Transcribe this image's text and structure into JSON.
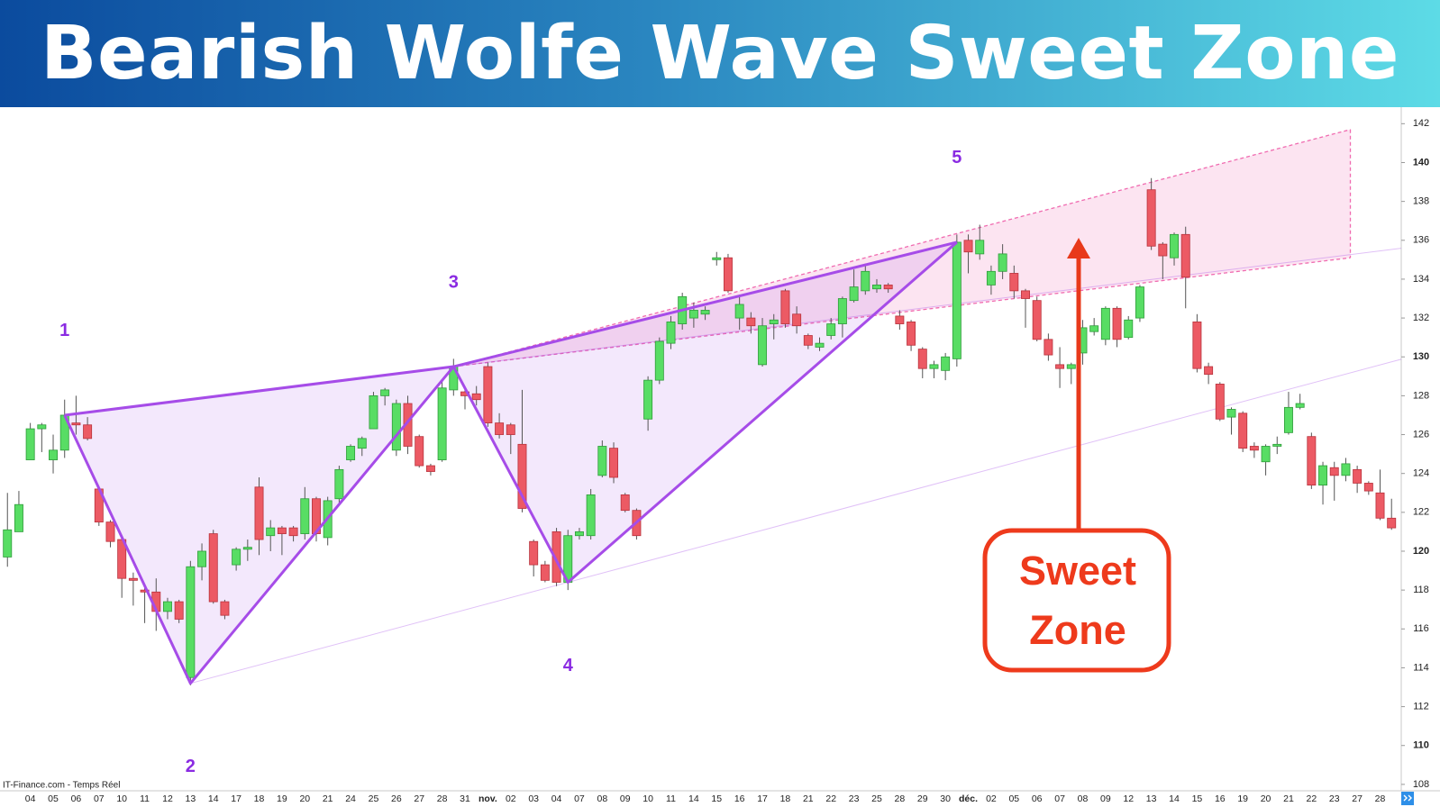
{
  "chart_data": {
    "type": "candlestick",
    "title": "Bearish Wolfe Wave Sweet Zone",
    "source": "IT-Finance.com - Temps Réel",
    "categories": [
      null,
      null,
      "04",
      null,
      "05",
      null,
      "06",
      null,
      "07",
      null,
      "10",
      null,
      "11",
      null,
      "12",
      null,
      "13",
      null,
      "14",
      null,
      "17",
      null,
      "18",
      null,
      "19",
      null,
      "20",
      null,
      "21",
      null,
      "24",
      null,
      "25",
      null,
      "26",
      null,
      "27",
      null,
      "28",
      null,
      "31",
      null,
      "nov.",
      null,
      "02",
      null,
      "03",
      null,
      "04",
      null,
      "07",
      null,
      "08",
      null,
      "09",
      null,
      "10",
      null,
      "11",
      null,
      "14",
      null,
      "15",
      null,
      "16",
      null,
      "17",
      null,
      "18",
      null,
      "21",
      null,
      "22",
      null,
      "23",
      null,
      "25",
      null,
      "28",
      null,
      "29",
      null,
      "30",
      null,
      "déc.",
      null,
      "02",
      null,
      "05",
      null,
      "06",
      null,
      "07",
      null,
      "08",
      null,
      "09",
      null,
      "12",
      null,
      "13",
      null,
      "14",
      null,
      "15",
      null,
      "16",
      null,
      "19",
      null,
      "20",
      null,
      "21",
      null,
      "22",
      null,
      "23",
      null,
      "27",
      null,
      "28",
      null
    ],
    "open": [
      119.7,
      121.0,
      124.7,
      126.3,
      124.7,
      125.2,
      126.6,
      126.5,
      123.2,
      121.5,
      120.6,
      118.6,
      118.0,
      117.9,
      116.9,
      117.4,
      113.5,
      119.2,
      120.9,
      117.4,
      119.3,
      120.1,
      123.3,
      120.8,
      121.2,
      121.2,
      120.9,
      122.7,
      120.7,
      122.7,
      124.7,
      125.3,
      126.3,
      128.0,
      125.2,
      127.6,
      125.9,
      124.4,
      124.7,
      128.3,
      128.2,
      128.1,
      129.5,
      126.6,
      126.5,
      125.5,
      120.5,
      119.3,
      121.0,
      118.4,
      120.8,
      120.8,
      123.9,
      125.3,
      122.9,
      122.1,
      126.8,
      128.8,
      130.7,
      131.7,
      132.0,
      132.2,
      135.0,
      135.1,
      132.0,
      132.0,
      129.6,
      131.7,
      133.4,
      132.2,
      131.1,
      130.5,
      131.1,
      131.7,
      132.9,
      133.4,
      133.5,
      133.7,
      132.1,
      131.8,
      130.4,
      129.4,
      129.3,
      129.9,
      136.0,
      135.3,
      133.7,
      134.4,
      134.3,
      133.4,
      132.9,
      130.9,
      129.6,
      129.4,
      130.2,
      131.3,
      130.9,
      132.5,
      131.0,
      132.0,
      138.6,
      135.8,
      135.1,
      136.3,
      131.8,
      129.5,
      128.6,
      126.9,
      127.1,
      125.4,
      124.6,
      125.4,
      126.1,
      127.4,
      125.9,
      123.4,
      124.3,
      123.9,
      124.2,
      123.5,
      123.0,
      121.7
    ],
    "high": [
      123.0,
      123.1,
      126.6,
      126.6,
      126.0,
      127.8,
      128.0,
      126.9,
      123.3,
      121.6,
      120.7,
      118.9,
      118.2,
      118.6,
      117.6,
      117.5,
      119.5,
      120.4,
      121.1,
      117.5,
      120.2,
      120.6,
      123.8,
      121.6,
      121.3,
      121.3,
      123.3,
      122.8,
      122.8,
      124.4,
      125.5,
      125.9,
      128.2,
      128.4,
      127.8,
      128.0,
      126.0,
      124.5,
      128.8,
      129.9,
      128.3,
      128.5,
      129.7,
      127.1,
      126.6,
      128.3,
      120.6,
      119.5,
      121.2,
      121.1,
      121.2,
      123.2,
      125.7,
      125.6,
      123.0,
      122.2,
      129.0,
      131.0,
      132.1,
      133.3,
      132.8,
      132.6,
      135.4,
      135.3,
      133.2,
      132.3,
      132.0,
      132.2,
      133.5,
      132.6,
      131.2,
      131.0,
      132.0,
      133.1,
      134.5,
      134.8,
      134.0,
      133.8,
      132.4,
      131.9,
      130.5,
      129.8,
      130.2,
      136.3,
      136.3,
      136.8,
      134.7,
      135.8,
      134.7,
      133.5,
      133.1,
      131.2,
      130.5,
      129.7,
      131.9,
      132.0,
      132.6,
      132.6,
      132.1,
      133.7,
      139.2,
      135.9,
      136.4,
      136.7,
      132.2,
      129.7,
      128.7,
      127.4,
      127.2,
      125.6,
      125.5,
      125.9,
      128.2,
      128.1,
      126.1,
      124.6,
      124.6,
      124.8,
      124.4,
      123.6,
      124.2,
      122.7
    ],
    "low": [
      119.2,
      121.0,
      124.7,
      125.1,
      124.0,
      124.8,
      126.0,
      125.7,
      121.3,
      120.2,
      117.6,
      117.2,
      116.3,
      115.9,
      116.5,
      116.3,
      113.1,
      118.5,
      117.3,
      116.5,
      119.0,
      119.5,
      119.8,
      120.0,
      119.8,
      120.5,
      120.6,
      120.5,
      120.3,
      122.5,
      124.6,
      124.9,
      126.3,
      127.5,
      124.9,
      125.0,
      124.3,
      123.9,
      124.6,
      128.0,
      127.3,
      127.5,
      126.4,
      125.8,
      125.0,
      122.0,
      118.7,
      118.4,
      118.2,
      118.0,
      120.6,
      120.6,
      123.8,
      123.5,
      122.0,
      120.6,
      126.2,
      128.6,
      130.4,
      131.4,
      131.5,
      131.9,
      134.7,
      133.3,
      131.4,
      131.2,
      129.5,
      130.9,
      131.5,
      131.2,
      130.4,
      130.3,
      130.9,
      131.0,
      132.8,
      133.2,
      133.3,
      133.3,
      131.4,
      130.3,
      128.9,
      128.9,
      128.8,
      129.5,
      134.3,
      135.0,
      133.2,
      134.0,
      133.0,
      131.5,
      130.8,
      129.8,
      128.4,
      128.6,
      129.6,
      131.1,
      130.6,
      130.5,
      130.9,
      131.8,
      135.5,
      134.0,
      134.7,
      132.5,
      129.2,
      128.6,
      126.7,
      126.0,
      125.1,
      124.8,
      123.9,
      125.0,
      126.0,
      127.3,
      123.2,
      122.4,
      122.6,
      123.6,
      123.0,
      122.9,
      121.6,
      121.1
    ],
    "close": [
      121.1,
      122.4,
      126.3,
      126.5,
      125.2,
      127.0,
      126.5,
      125.8,
      121.5,
      120.5,
      118.6,
      118.5,
      117.9,
      116.9,
      117.4,
      116.5,
      119.2,
      120.0,
      117.4,
      116.7,
      120.1,
      120.2,
      120.6,
      121.2,
      120.9,
      120.8,
      122.7,
      120.9,
      122.6,
      124.2,
      125.4,
      125.8,
      128.0,
      128.3,
      127.6,
      125.4,
      124.4,
      124.1,
      128.4,
      129.5,
      128.0,
      127.8,
      126.6,
      126.0,
      126.0,
      122.2,
      119.3,
      118.5,
      118.4,
      120.8,
      121.0,
      122.9,
      125.4,
      123.8,
      122.1,
      120.8,
      128.8,
      130.8,
      131.8,
      133.1,
      132.4,
      132.4,
      135.1,
      133.4,
      132.7,
      131.6,
      131.6,
      131.9,
      131.7,
      131.6,
      130.6,
      130.7,
      131.7,
      133.0,
      133.6,
      134.4,
      133.7,
      133.5,
      131.7,
      130.6,
      129.4,
      129.6,
      130.0,
      135.9,
      135.4,
      136.0,
      134.4,
      135.3,
      133.4,
      133.0,
      130.9,
      130.1,
      129.4,
      129.6,
      131.5,
      131.6,
      132.5,
      130.9,
      131.9,
      133.6,
      135.7,
      135.2,
      136.3,
      134.1,
      129.4,
      129.1,
      126.8,
      127.3,
      125.3,
      125.2,
      125.4,
      125.5,
      127.4,
      127.6,
      123.4,
      124.4,
      123.9,
      124.5,
      123.5,
      123.1,
      121.7,
      121.2
    ],
    "up_color": "#58dd64",
    "down_color": "#ec5a64",
    "ylim": [
      107.67,
      142.85
    ],
    "yticks": [
      108,
      110,
      112,
      114,
      116,
      118,
      120,
      122,
      124,
      126,
      128,
      130,
      132,
      134,
      136,
      138,
      140,
      142
    ],
    "grid": false,
    "wave_points": [
      {
        "label": "1",
        "x": 5,
        "y": 127.0
      },
      {
        "label": "2",
        "x": 16,
        "y": 113.2
      },
      {
        "label": "3",
        "x": 39,
        "y": 129.5
      },
      {
        "label": "4",
        "x": 49,
        "y": 118.4
      },
      {
        "label": "5",
        "x": 83,
        "y": 135.9
      }
    ],
    "wave_color": "#a64ce8",
    "sweet_zone": {
      "x": [
        39,
        117.4
      ],
      "upper": [
        129.5,
        141.7
      ],
      "lower": [
        129.5,
        135.1
      ],
      "color": "#f06bb0"
    },
    "callout": [
      "Sweet",
      "Zone"
    ]
  }
}
